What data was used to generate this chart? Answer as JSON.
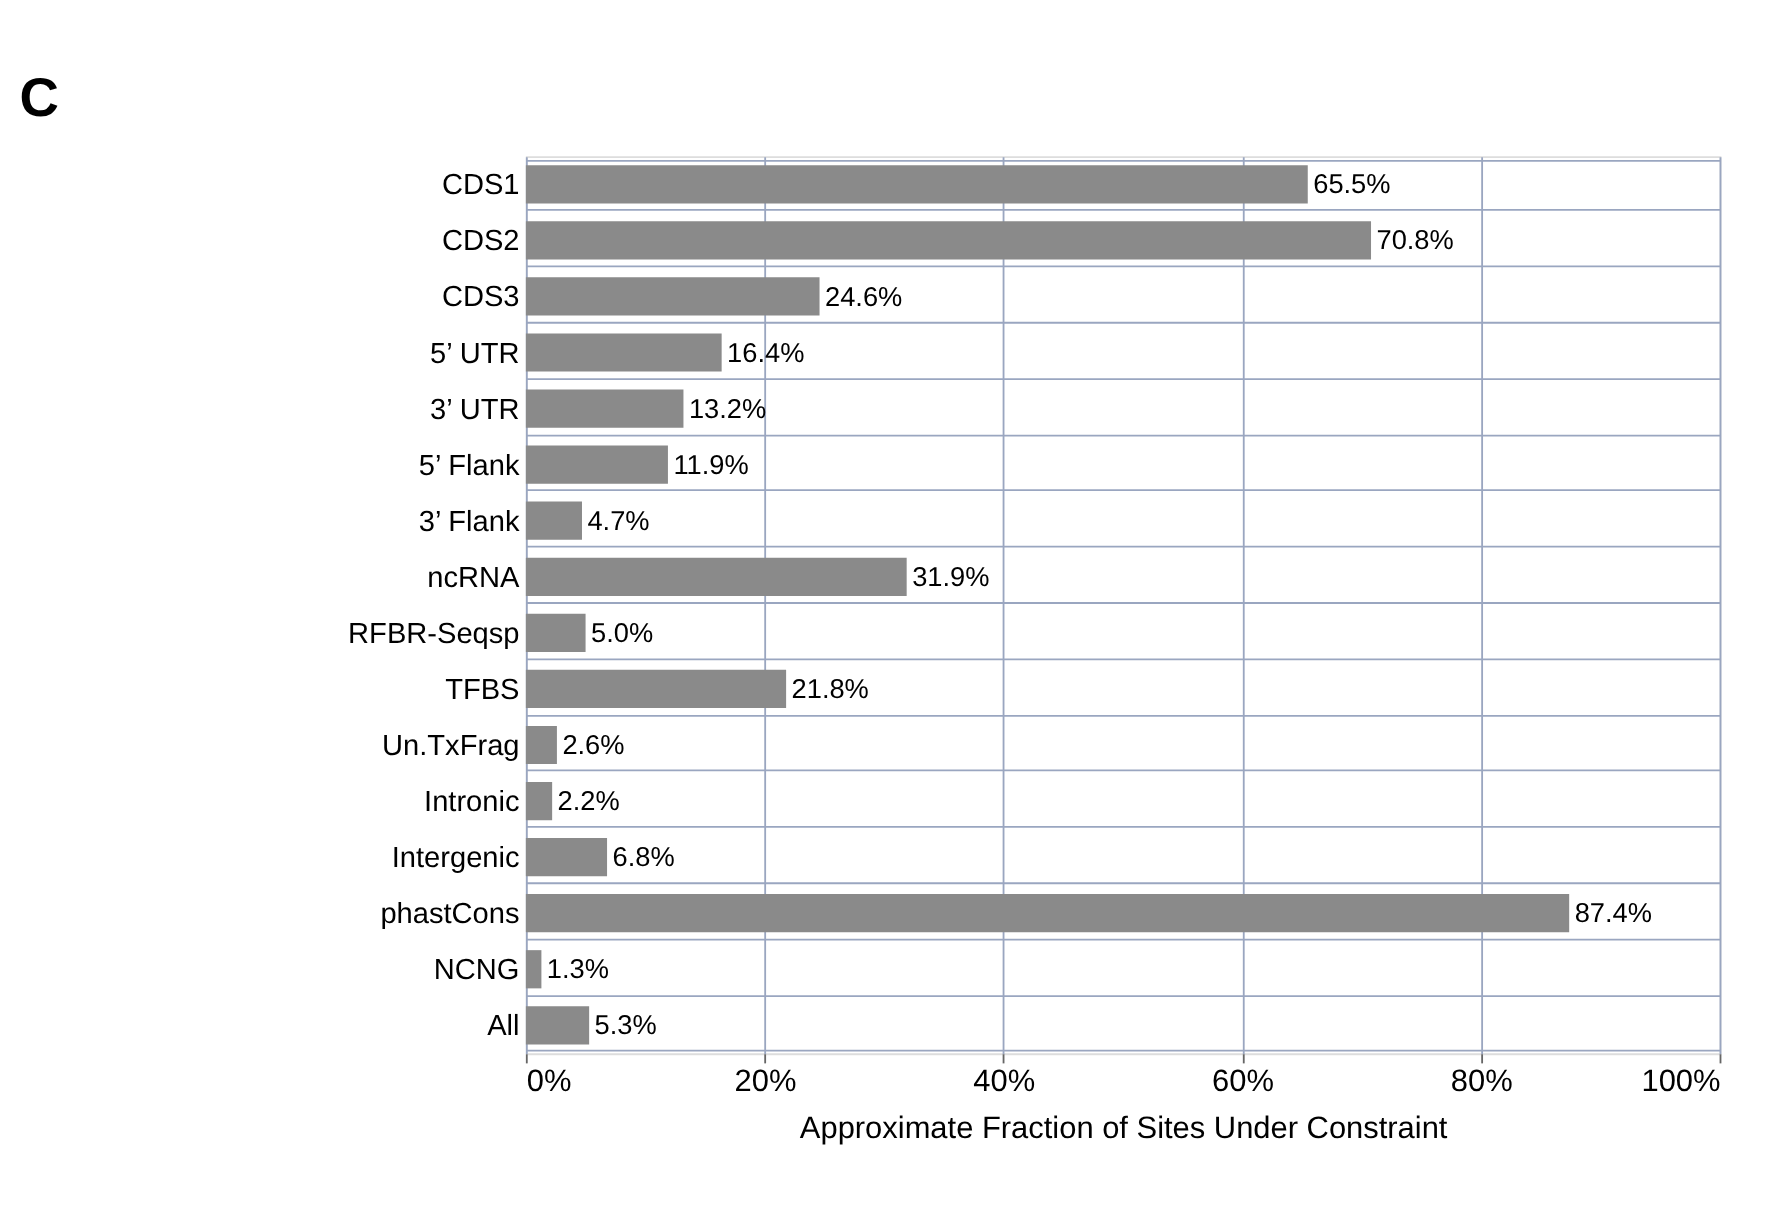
{
  "chart_data": {
    "type": "bar",
    "orientation": "horizontal",
    "title": "C",
    "categories": [
      "CDS1",
      "CDS2",
      "CDS3",
      "5’ UTR",
      "3’ UTR",
      "5’ Flank",
      "3’ Flank",
      "ncRNA",
      "RFBR-Seqsp",
      "TFBS",
      "Un.TxFrag",
      "Intronic",
      "Intergenic",
      "phastCons",
      "NCNG",
      "All"
    ],
    "values": [
      65.5,
      70.8,
      24.6,
      16.4,
      13.2,
      11.9,
      4.7,
      31.9,
      5.0,
      21.8,
      2.6,
      2.2,
      6.8,
      87.4,
      1.3,
      5.3
    ],
    "value_labels": [
      "65.5%",
      "70.8%",
      "24.6%",
      "16.4%",
      "13.2%",
      "11.9%",
      "4.7%",
      "31.9%",
      "5.0%",
      "21.8%",
      "2.6%",
      "2.2%",
      "6.8%",
      "87.4%",
      "1.3%",
      "5.3%"
    ],
    "color": "#8a8a8a",
    "xlabel": "Approximate Fraction of Sites Under Constraint",
    "xlim": [
      0,
      100
    ],
    "xticks": [
      {
        "value": 0,
        "label": "0%"
      },
      {
        "value": 20,
        "label": "20%"
      },
      {
        "value": 40,
        "label": "40%"
      },
      {
        "value": 60,
        "label": "60%"
      },
      {
        "value": 80,
        "label": "80%"
      },
      {
        "value": 100,
        "label": "100%"
      }
    ],
    "grid": true
  }
}
